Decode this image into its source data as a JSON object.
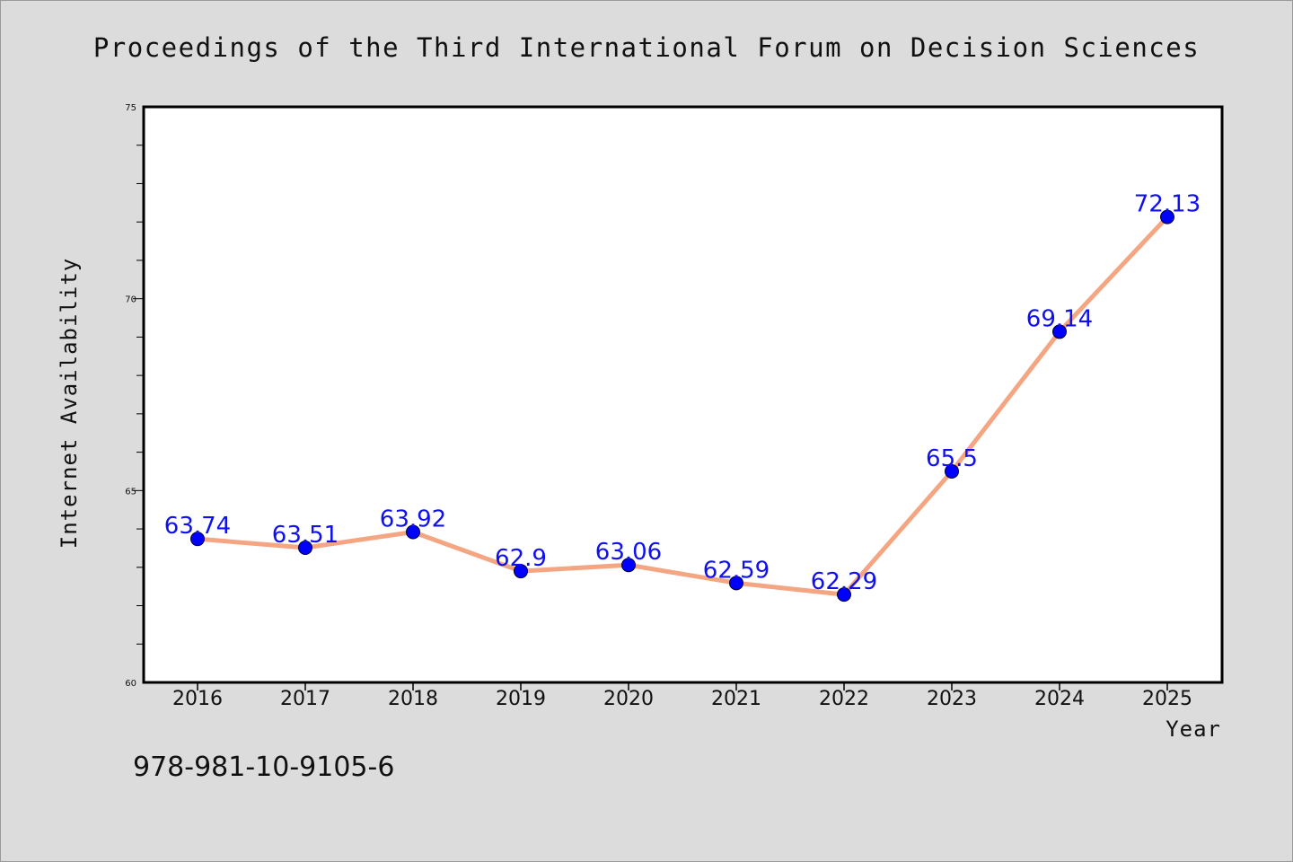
{
  "chart_data": {
    "type": "line",
    "title": "Proceedings of the Third International Forum on Decision Sciences",
    "xlabel": "Year",
    "ylabel": "Internet Availability",
    "categories": [
      "2016",
      "2017",
      "2018",
      "2019",
      "2020",
      "2021",
      "2022",
      "2023",
      "2024",
      "2025"
    ],
    "series": [
      {
        "values": [
          63.74,
          63.51,
          63.92,
          62.9,
          63.06,
          62.59,
          62.29,
          65.5,
          69.14,
          72.13
        ],
        "labels": [
          "63.74",
          "63.51",
          "63.92",
          "62.9",
          "63.06",
          "62.59",
          "62.29",
          "65.5",
          "69.14",
          "72.13"
        ]
      }
    ],
    "ylim": [
      60,
      75
    ],
    "yticks": [
      "60",
      "65",
      "70",
      "75"
    ],
    "grid": false,
    "legend": "none",
    "line_color": "#f4a582",
    "marker_color": "#0000ff",
    "label_color": "#1010ee"
  },
  "footer": {
    "isbn": "978-981-10-9105-6"
  }
}
